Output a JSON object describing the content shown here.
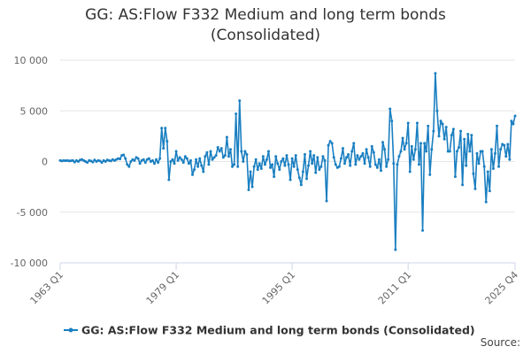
{
  "chart_data": {
    "type": "line",
    "title": "GG: AS:Flow F332 Medium and long term bonds (Consolidated)",
    "source": "Source:",
    "categories": [
      "1963 Q1",
      null,
      null,
      null,
      null,
      null,
      null,
      null,
      null,
      null,
      null,
      null,
      null,
      null,
      null,
      null,
      null,
      null,
      null,
      null,
      null,
      null,
      null,
      null,
      null,
      null,
      null,
      null,
      null,
      null,
      null,
      null,
      null,
      null,
      null,
      null,
      null,
      null,
      null,
      null,
      null,
      null,
      null,
      null,
      null,
      null,
      null,
      null,
      null,
      null,
      null,
      null,
      null,
      null,
      null,
      null,
      null,
      null,
      null,
      null,
      null,
      null,
      null,
      null,
      "1979 Q1",
      null,
      null,
      null,
      null,
      null,
      null,
      null,
      null,
      null,
      null,
      null,
      null,
      null,
      null,
      null,
      null,
      null,
      null,
      null,
      null,
      null,
      null,
      null,
      null,
      null,
      null,
      null,
      null,
      null,
      null,
      null,
      null,
      null,
      null,
      null,
      null,
      null,
      null,
      null,
      null,
      null,
      null,
      null,
      null,
      null,
      null,
      null,
      null,
      null,
      null,
      null,
      null,
      null,
      null,
      null,
      null,
      null,
      null,
      null,
      null,
      null,
      null,
      null,
      "1995 Q1",
      null,
      null,
      null,
      null,
      null,
      null,
      null,
      null,
      null,
      null,
      null,
      null,
      null,
      null,
      null,
      null,
      null,
      null,
      null,
      null,
      null,
      null,
      null,
      null,
      null,
      null,
      null,
      null,
      null,
      null,
      null,
      null,
      null,
      null,
      null,
      null,
      null,
      null,
      null,
      null,
      null,
      null,
      null,
      null,
      null,
      null,
      null,
      null,
      null,
      null,
      null,
      null,
      null,
      null,
      null,
      null,
      null,
      null,
      null,
      null,
      null,
      null,
      null,
      "2011 Q1",
      null,
      null,
      null,
      null,
      null,
      null,
      null,
      null,
      null,
      null,
      null,
      null,
      null,
      null,
      null,
      null,
      null,
      null,
      null,
      null,
      null,
      null,
      null,
      null,
      null,
      null,
      null,
      null,
      null,
      null,
      null,
      null,
      null,
      null,
      null,
      null,
      null,
      null,
      null,
      null,
      null,
      null,
      null,
      null,
      null,
      null,
      null,
      null,
      null,
      null,
      null,
      null,
      null,
      null,
      null,
      null,
      null,
      null,
      "2025 Q4"
    ],
    "series": [
      {
        "name": "GG: AS:Flow F332 Medium and long term bonds (Consolidated)",
        "color": "#1a7fc1",
        "values": [
          100,
          50,
          100,
          80,
          100,
          50,
          80,
          100,
          -50,
          100,
          0,
          150,
          200,
          100,
          0,
          -100,
          100,
          50,
          -50,
          150,
          0,
          100,
          50,
          -100,
          100,
          0,
          150,
          100,
          50,
          200,
          100,
          200,
          300,
          250,
          600,
          650,
          300,
          -300,
          -500,
          0,
          200,
          100,
          400,
          300,
          -200,
          100,
          200,
          -100,
          200,
          300,
          0,
          100,
          -200,
          200,
          -100,
          300,
          3300,
          1300,
          3300,
          2000,
          -1800,
          0,
          200,
          -200,
          1000,
          100,
          400,
          200,
          -100,
          500,
          300,
          -200,
          100,
          -1300,
          -800,
          200,
          -500,
          300,
          -400,
          -1000,
          500,
          900,
          -300,
          1000,
          200,
          400,
          600,
          1400,
          1000,
          1300,
          400,
          600,
          2400,
          500,
          1200,
          -500,
          -300,
          4700,
          -500,
          6000,
          1000,
          0,
          1000,
          700,
          -2800,
          -1000,
          -2500,
          -500,
          200,
          -800,
          -200,
          -700,
          500,
          -300,
          200,
          1000,
          -600,
          -300,
          -1500,
          500,
          -200,
          -800,
          0,
          300,
          -400,
          600,
          -300,
          -1800,
          300,
          -500,
          600,
          -800,
          -1600,
          -2300,
          -1000,
          700,
          -1700,
          -400,
          1000,
          -200,
          600,
          -1100,
          400,
          -800,
          -500,
          500,
          100,
          -3900,
          1600,
          2000,
          1800,
          400,
          -300,
          -600,
          -500,
          300,
          1300,
          -200,
          400,
          700,
          -400,
          1000,
          1800,
          -300,
          600,
          200,
          500,
          800,
          -200,
          1200,
          400,
          -500,
          1500,
          900,
          -300,
          -600,
          200,
          -900,
          1900,
          1200,
          -500,
          200,
          5200,
          4000,
          -200,
          -8700,
          -300,
          500,
          1000,
          2300,
          1200,
          1800,
          3800,
          -1000,
          1500,
          200,
          1200,
          3800,
          -300,
          1800,
          -6800,
          1800,
          1000,
          3500,
          -1300,
          1200,
          3000,
          8700,
          5000,
          2500,
          4000,
          3700,
          2200,
          3400,
          1000,
          1000,
          2600,
          3200,
          -1500,
          1000,
          1400,
          3000,
          -2300,
          2200,
          -400,
          2700,
          1000,
          2600,
          -1200,
          -2700,
          800,
          -200,
          1000,
          1000,
          -500,
          -4000,
          -1000,
          -2900,
          1200,
          -700,
          800,
          3500,
          -500,
          1200,
          1700,
          1600,
          500,
          1700,
          200,
          4000,
          3700,
          4500
        ]
      }
    ],
    "ylim": [
      -10000,
      10000
    ],
    "yticks": [
      {
        "value": -10000,
        "label": "-10 000"
      },
      {
        "value": -5000,
        "label": "-5 000"
      },
      0,
      {
        "value": 5000,
        "label": "5 000"
      },
      {
        "value": 10000,
        "label": "10 000"
      }
    ],
    "grid": true
  }
}
